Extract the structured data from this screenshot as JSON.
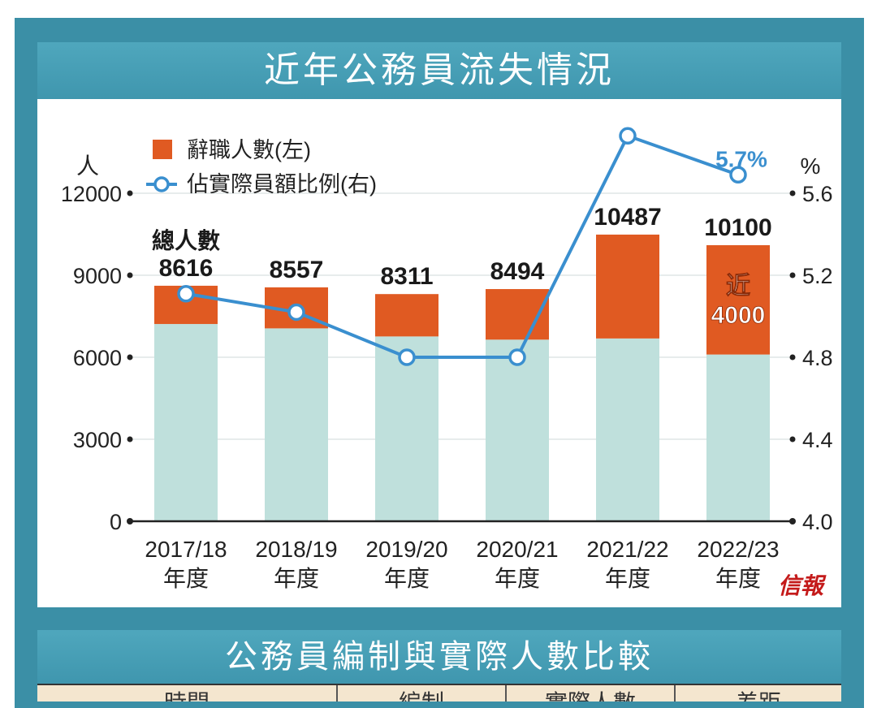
{
  "title": "近年公務員流失情況",
  "bottom_title": "公務員編制與實際人數比較",
  "table_headers": [
    "時間",
    "編制",
    "實際人數",
    "差距"
  ],
  "source": "信報",
  "colors": {
    "frame": "#3b8fa6",
    "title_bar": "#4fa7bd",
    "resignations": "#e05a22",
    "remaining": "#bfe0dc",
    "ratio_line": "#3a8fcf"
  },
  "chart_data": {
    "type": "bar",
    "left_axis_unit": "人",
    "right_axis_unit": "%",
    "left_ticks": [
      "0",
      "3000",
      "6000",
      "9000",
      "12000"
    ],
    "right_ticks": [
      "4.0",
      "4.4",
      "4.8",
      "5.2",
      "5.6"
    ],
    "ylim_left": [
      0,
      12000
    ],
    "ylim_right": [
      4.0,
      5.6
    ],
    "total_label": "總人數",
    "categories": [
      {
        "year": "2017/18",
        "suffix": "年度"
      },
      {
        "year": "2018/19",
        "suffix": "年度"
      },
      {
        "year": "2019/20",
        "suffix": "年度"
      },
      {
        "year": "2020/21",
        "suffix": "年度"
      },
      {
        "year": "2021/22",
        "suffix": "年度"
      },
      {
        "year": "2022/23",
        "suffix": "年度"
      }
    ],
    "series": [
      {
        "name": "辭職人數(左)",
        "type": "bar",
        "values": [
          1400,
          1500,
          1550,
          1850,
          3800,
          4000
        ]
      },
      {
        "name": "佔實際員額比例(右)",
        "type": "line",
        "values": [
          5.11,
          5.02,
          4.8,
          4.8,
          5.88,
          5.69
        ]
      }
    ],
    "totals": [
      8616,
      8557,
      8311,
      8494,
      10487,
      10100
    ],
    "total_labels": [
      "8616",
      "8557",
      "8311",
      "8494",
      "10487",
      "10100"
    ],
    "annotations": {
      "last_ratio_label": "5.7%",
      "last_bar_near": "近",
      "last_bar_value": "4000"
    }
  }
}
